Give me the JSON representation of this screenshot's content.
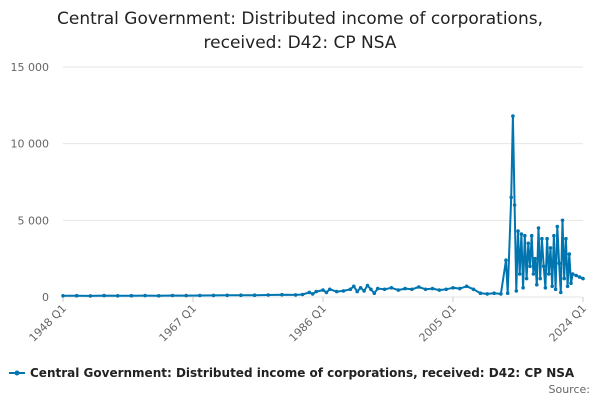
{
  "chart_data": {
    "type": "line",
    "title_line1": "Central Government: Distributed income of corporations,",
    "title_line2": "received: D42: CP NSA",
    "xlabel": "",
    "ylabel": "",
    "ylim": [
      0,
      15000
    ],
    "yticks": [
      0,
      5000,
      10000,
      15000
    ],
    "ytick_labels": [
      "0",
      "5 000",
      "10 000",
      "15 000"
    ],
    "xtick_labels": [
      "1948 Q1",
      "1967 Q1",
      "1986 Q1",
      "2005 Q1",
      "2024 Q1"
    ],
    "x_start_year": 1948,
    "x_end_year": 2024,
    "grid": true,
    "legend_position": "bottom",
    "color": "#0075b0",
    "series": [
      {
        "name": "Central Government: Distributed income of corporations, received: D42: CP NSA",
        "points": [
          [
            1948.0,
            80
          ],
          [
            1950.0,
            85
          ],
          [
            1952.0,
            75
          ],
          [
            1954.0,
            90
          ],
          [
            1956.0,
            80
          ],
          [
            1958.0,
            85
          ],
          [
            1960.0,
            90
          ],
          [
            1962.0,
            80
          ],
          [
            1964.0,
            95
          ],
          [
            1966.0,
            90
          ],
          [
            1968.0,
            100
          ],
          [
            1970.0,
            105
          ],
          [
            1972.0,
            110
          ],
          [
            1974.0,
            120
          ],
          [
            1976.0,
            115
          ],
          [
            1978.0,
            130
          ],
          [
            1980.0,
            150
          ],
          [
            1982.0,
            140
          ],
          [
            1983.0,
            160
          ],
          [
            1984.0,
            300
          ],
          [
            1984.5,
            200
          ],
          [
            1985.0,
            350
          ],
          [
            1986.0,
            450
          ],
          [
            1986.5,
            300
          ],
          [
            1987.0,
            500
          ],
          [
            1988.0,
            350
          ],
          [
            1989.0,
            400
          ],
          [
            1990.0,
            500
          ],
          [
            1990.5,
            700
          ],
          [
            1991.0,
            350
          ],
          [
            1991.5,
            600
          ],
          [
            1992.0,
            400
          ],
          [
            1992.5,
            750
          ],
          [
            1993.0,
            500
          ],
          [
            1993.5,
            250
          ],
          [
            1994.0,
            550
          ],
          [
            1995.0,
            500
          ],
          [
            1996.0,
            600
          ],
          [
            1997.0,
            450
          ],
          [
            1998.0,
            550
          ],
          [
            1999.0,
            500
          ],
          [
            2000.0,
            650
          ],
          [
            2001.0,
            500
          ],
          [
            2002.0,
            550
          ],
          [
            2003.0,
            450
          ],
          [
            2004.0,
            500
          ],
          [
            2005.0,
            600
          ],
          [
            2006.0,
            550
          ],
          [
            2007.0,
            700
          ],
          [
            2008.0,
            500
          ],
          [
            2009.0,
            250
          ],
          [
            2010.0,
            200
          ],
          [
            2011.0,
            250
          ],
          [
            2012.0,
            200
          ],
          [
            2012.75,
            2400
          ],
          [
            2013.0,
            250
          ],
          [
            2013.5,
            6500
          ],
          [
            2013.75,
            11800
          ],
          [
            2014.0,
            6000
          ],
          [
            2014.25,
            400
          ],
          [
            2014.5,
            4300
          ],
          [
            2014.75,
            1500
          ],
          [
            2015.0,
            4100
          ],
          [
            2015.25,
            600
          ],
          [
            2015.5,
            4000
          ],
          [
            2015.75,
            1200
          ],
          [
            2016.0,
            3500
          ],
          [
            2016.25,
            2000
          ],
          [
            2016.5,
            4000
          ],
          [
            2016.75,
            1500
          ],
          [
            2017.0,
            2500
          ],
          [
            2017.25,
            800
          ],
          [
            2017.5,
            4500
          ],
          [
            2017.75,
            1200
          ],
          [
            2018.0,
            3800
          ],
          [
            2018.25,
            2000
          ],
          [
            2018.5,
            600
          ],
          [
            2018.75,
            3800
          ],
          [
            2019.0,
            1500
          ],
          [
            2019.25,
            3200
          ],
          [
            2019.5,
            700
          ],
          [
            2019.75,
            4000
          ],
          [
            2020.0,
            500
          ],
          [
            2020.25,
            4600
          ],
          [
            2020.5,
            2200
          ],
          [
            2020.75,
            300
          ],
          [
            2021.0,
            5000
          ],
          [
            2021.25,
            1200
          ],
          [
            2021.5,
            3800
          ],
          [
            2021.75,
            700
          ],
          [
            2022.0,
            2800
          ],
          [
            2022.25,
            900
          ],
          [
            2022.5,
            1500
          ],
          [
            2023.0,
            1400
          ],
          [
            2023.5,
            1300
          ],
          [
            2024.0,
            1200
          ]
        ]
      }
    ],
    "source_label": "Source:"
  }
}
